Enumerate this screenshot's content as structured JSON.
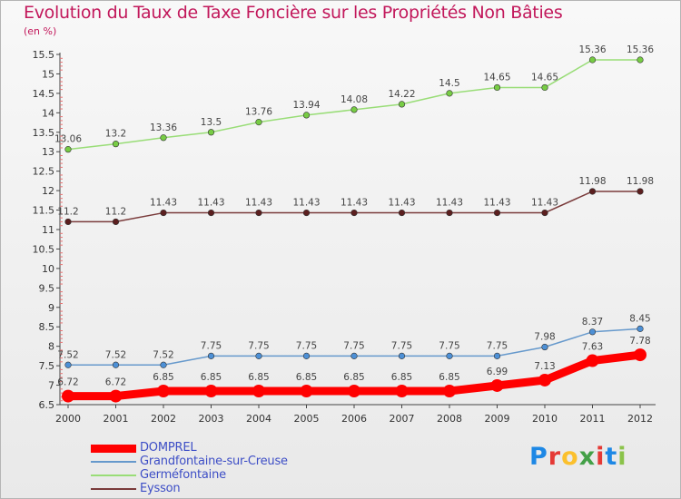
{
  "title": "Evolution du Taux de Taxe Foncière sur les Propriétés Non Bâties",
  "unit": "(en %)",
  "brand": {
    "text": "Proxiti",
    "letters": [
      "P",
      "r",
      "o",
      "x",
      "i",
      "t",
      "i"
    ],
    "letter_colors": [
      "#1e88e5",
      "#e53935",
      "#fbc02d",
      "#43a047",
      "#e53935",
      "#1e88e5",
      "#8bc34a"
    ]
  },
  "chart_data": {
    "type": "line",
    "title": "Evolution du Taux de Taxe Foncière sur les Propriétés Non Bâties",
    "xlabel": "",
    "ylabel": "(en %)",
    "x": [
      "2000",
      "2001",
      "2002",
      "2003",
      "2004",
      "2005",
      "2006",
      "2007",
      "2008",
      "2009",
      "2010",
      "2011",
      "2012"
    ],
    "ylim": [
      6.5,
      15.5
    ],
    "yticks": [
      "6.5",
      "7",
      "7.5",
      "8",
      "8.5",
      "9",
      "9.5",
      "10",
      "10.5",
      "11",
      "11.5",
      "12",
      "12.5",
      "13",
      "13.5",
      "14",
      "14.5",
      "15",
      "15.5"
    ],
    "grid": false,
    "legend_position": "bottom-left",
    "series": [
      {
        "name": "DOMPREL",
        "color": "#ff0000",
        "marker_color": "#ff0000",
        "bold": true,
        "values": [
          6.72,
          6.72,
          6.85,
          6.85,
          6.85,
          6.85,
          6.85,
          6.85,
          6.85,
          6.99,
          7.13,
          7.63,
          7.78
        ],
        "labels": [
          "6.72",
          "6.72",
          "6.85",
          "6.85",
          "6.85",
          "6.85",
          "6.85",
          "6.85",
          "6.85",
          "6.99",
          "7.13",
          "7.63",
          "7.78"
        ]
      },
      {
        "name": "Grandfontaine-sur-Creuse",
        "color": "#6699cc",
        "marker_color": "#4d90d6",
        "bold": false,
        "values": [
          7.52,
          7.52,
          7.52,
          7.75,
          7.75,
          7.75,
          7.75,
          7.75,
          7.75,
          7.75,
          7.98,
          8.37,
          8.45
        ],
        "labels": [
          "7.52",
          "7.52",
          "7.52",
          "7.75",
          "7.75",
          "7.75",
          "7.75",
          "7.75",
          "7.75",
          "7.75",
          "7.98",
          "8.37",
          "8.45"
        ]
      },
      {
        "name": "Germéfontaine",
        "color": "#99dd77",
        "marker_color": "#77cc44",
        "bold": false,
        "values": [
          13.06,
          13.2,
          13.36,
          13.5,
          13.76,
          13.94,
          14.08,
          14.22,
          14.5,
          14.65,
          14.65,
          15.36,
          15.36
        ],
        "labels": [
          "13.06",
          "13.2",
          "13.36",
          "13.5",
          "13.76",
          "13.94",
          "14.08",
          "14.22",
          "14.5",
          "14.65",
          "14.65",
          "15.36",
          "15.36"
        ]
      },
      {
        "name": "Eysson",
        "color": "#7a3b3b",
        "marker_color": "#5c1f1f",
        "bold": false,
        "values": [
          11.2,
          11.2,
          11.43,
          11.43,
          11.43,
          11.43,
          11.43,
          11.43,
          11.43,
          11.43,
          11.43,
          11.98,
          11.98
        ],
        "labels": [
          "11.2",
          "11.2",
          "11.43",
          "11.43",
          "11.43",
          "11.43",
          "11.43",
          "11.43",
          "11.43",
          "11.43",
          "11.43",
          "11.98",
          "11.98"
        ]
      }
    ]
  }
}
